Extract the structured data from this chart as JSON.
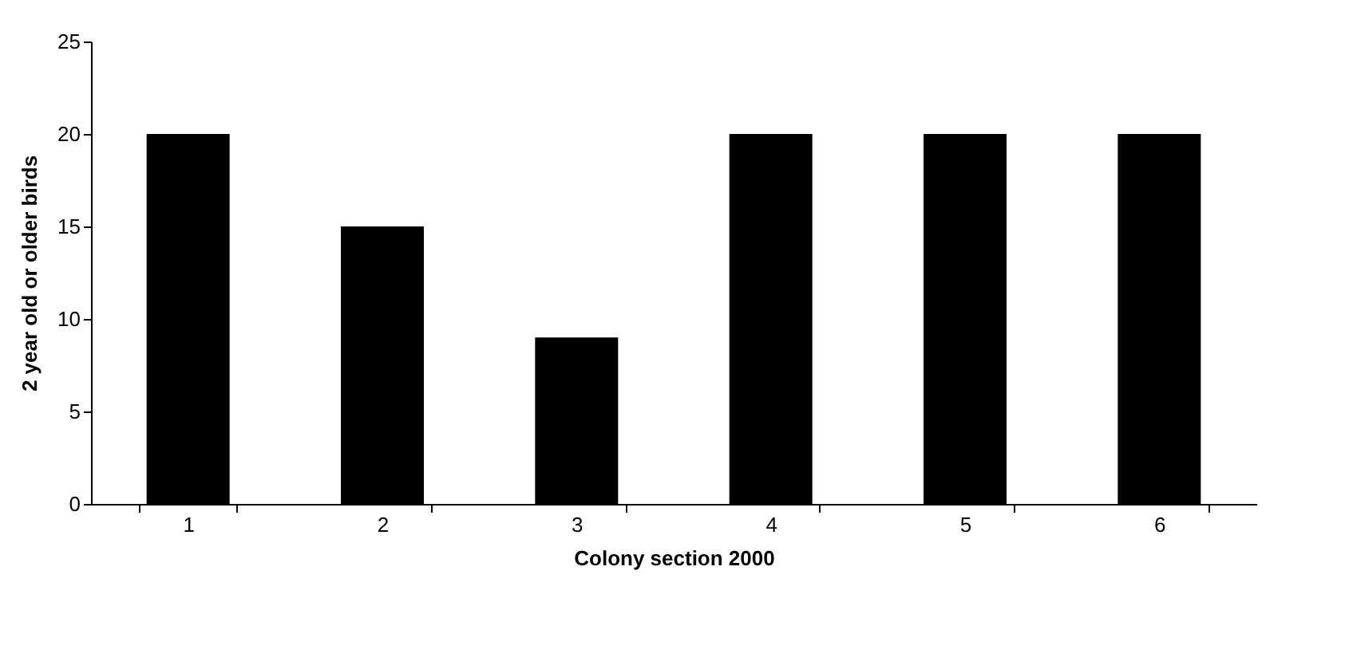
{
  "chart_data": {
    "type": "bar",
    "xlabel": "Colony section 2000",
    "ylabel": "2 year old or older birds",
    "categories": [
      "1",
      "2",
      "3",
      "4",
      "5",
      "6"
    ],
    "values": [
      20,
      15,
      9,
      20,
      20,
      20
    ],
    "color": "#000000",
    "ylim": [
      0,
      25
    ],
    "yticks": [
      0,
      5,
      10,
      15,
      20,
      25
    ],
    "grid": false
  }
}
